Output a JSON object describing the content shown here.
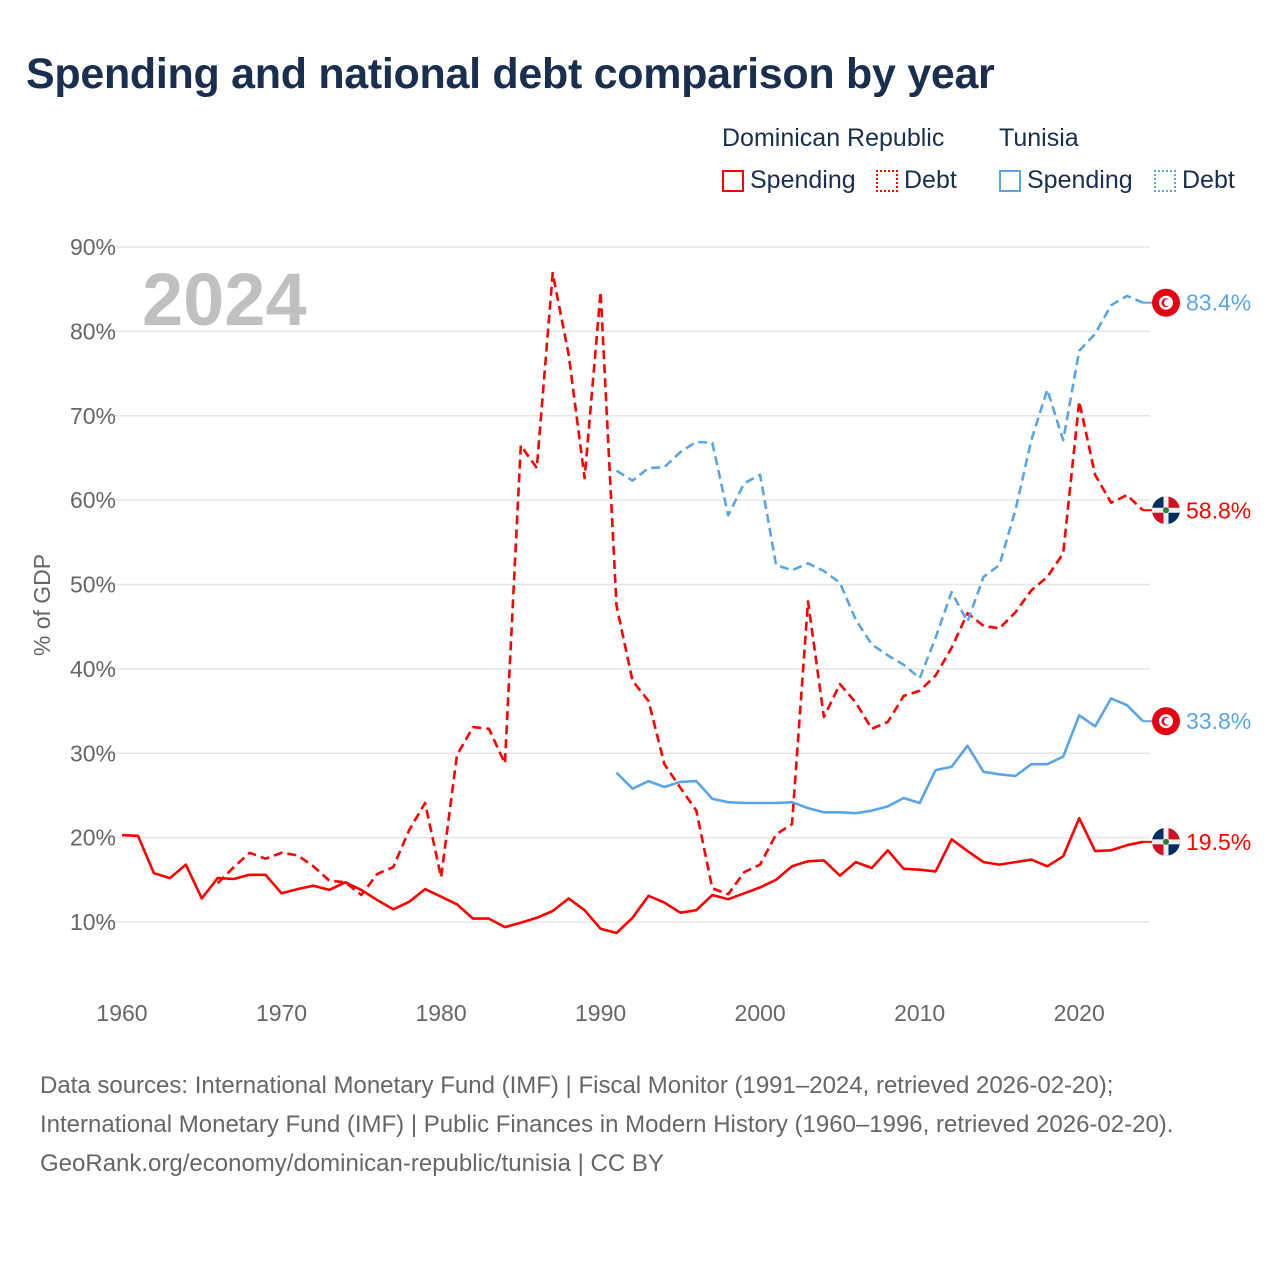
{
  "title": "Spending and national debt comparison by year",
  "legend": {
    "groups": [
      {
        "name": "Dominican Republic",
        "items": [
          "Spending",
          "Debt"
        ],
        "color": "#ff0000"
      },
      {
        "name": "Tunisia",
        "items": [
          "Spending",
          "Debt"
        ],
        "color": "#5aa5ea"
      }
    ]
  },
  "footer": {
    "sources": "Data sources: International Monetary Fund (IMF) | Fiscal Monitor (1991–2024, retrieved 2026-02-20); International Monetary Fund (IMF) | Public Finances in Modern History (1960–1996, retrieved 2026-02-20).",
    "link": "GeoRank.org/economy/dominican-republic/tunisia | CC BY"
  },
  "chart_data": {
    "type": "line",
    "title": "Spending and national debt comparison by year",
    "year_label": "2024",
    "xlabel": "",
    "ylabel": "% of GDP",
    "xlim": [
      1960,
      2024
    ],
    "ylim": [
      0,
      90
    ],
    "x_ticks": [
      1960,
      1970,
      1980,
      1990,
      2000,
      2010,
      2020
    ],
    "y_ticks": [
      10,
      20,
      30,
      40,
      50,
      60,
      70,
      80,
      90
    ],
    "y_tick_labels": [
      "10%",
      "20%",
      "30%",
      "40%",
      "50%",
      "60%",
      "70%",
      "80%",
      "90%"
    ],
    "grid": true,
    "legend_position": "top-right",
    "series": [
      {
        "name": "Dominican Republic Spending",
        "country": "Dominican Republic",
        "flag": "dominican-republic",
        "color": "#ff0000",
        "dash": false,
        "end_label": "19.5%",
        "start": 1960,
        "values": [
          20.3,
          20.2,
          15.8,
          15.2,
          16.8,
          12.8,
          15.2,
          15.1,
          15.6,
          15.6,
          13.4,
          13.9,
          14.3,
          13.8,
          14.7,
          13.8,
          12.6,
          11.5,
          12.4,
          13.9,
          13.0,
          12.1,
          10.4,
          10.4,
          9.4,
          9.9,
          10.5,
          11.3,
          12.8,
          11.4,
          9.2,
          8.7,
          10.5,
          13.1,
          12.3,
          11.1,
          11.4,
          13.2,
          12.7,
          13.4,
          14.1,
          15.0,
          16.6,
          17.2,
          17.3,
          15.5,
          17.1,
          16.4,
          18.5,
          16.3,
          16.2,
          16.0,
          19.8,
          18.4,
          17.1,
          16.8,
          17.1,
          17.4,
          16.6,
          17.8,
          22.3,
          18.4,
          18.5,
          19.1,
          19.5
        ]
      },
      {
        "name": "Dominican Republic Debt",
        "country": "Dominican Republic",
        "flag": "dominican-republic",
        "color": "#ff0000",
        "dash": true,
        "end_label": "58.8%",
        "start": 1966,
        "values": [
          14.6,
          16.5,
          18.2,
          17.5,
          18.2,
          17.9,
          16.6,
          14.9,
          14.7,
          13.2,
          15.7,
          16.5,
          20.9,
          24.1,
          15.3,
          29.8,
          33.1,
          32.9,
          28.8,
          66.5,
          63.8,
          86.9,
          77.2,
          62.6,
          84.7,
          47.5,
          38.6,
          36.2,
          28.7,
          25.9,
          23.2,
          14.0,
          13.3,
          15.9,
          16.8,
          20.4,
          21.6,
          48.0,
          34.3,
          38.2,
          36.0,
          32.9,
          33.7,
          36.8,
          37.4,
          39.2,
          42.5,
          46.6,
          45.1,
          44.8,
          46.7,
          49.3,
          50.9,
          53.7,
          71.7,
          63.0,
          59.7,
          60.6,
          58.8
        ]
      },
      {
        "name": "Tunisia Spending",
        "country": "Tunisia",
        "flag": "tunisia",
        "color": "#5aa5ea",
        "dash": false,
        "end_label": "33.8%",
        "start": 1991,
        "values": [
          27.7,
          25.8,
          26.7,
          26.0,
          26.6,
          26.7,
          24.6,
          24.2,
          24.1,
          24.1,
          24.1,
          24.2,
          23.5,
          23.0,
          23.0,
          22.9,
          23.2,
          23.7,
          24.7,
          24.1,
          28.0,
          28.4,
          30.9,
          27.8,
          27.5,
          27.3,
          28.7,
          28.7,
          29.6,
          34.5,
          33.2,
          36.5,
          35.7,
          33.8
        ]
      },
      {
        "name": "Tunisia Debt",
        "country": "Tunisia",
        "flag": "tunisia",
        "color": "#5aa5ea",
        "dash": true,
        "end_label": "83.4%",
        "start": 1991,
        "values": [
          63.5,
          62.3,
          63.8,
          63.9,
          65.7,
          66.9,
          66.8,
          58.2,
          62.0,
          63.0,
          52.3,
          51.7,
          52.5,
          51.6,
          50.2,
          45.8,
          42.9,
          41.6,
          40.5,
          38.9,
          43.7,
          49.1,
          45.6,
          50.9,
          52.3,
          58.8,
          67.1,
          73.1,
          67.1,
          77.7,
          79.7,
          83.1,
          84.2,
          83.4
        ]
      }
    ]
  }
}
